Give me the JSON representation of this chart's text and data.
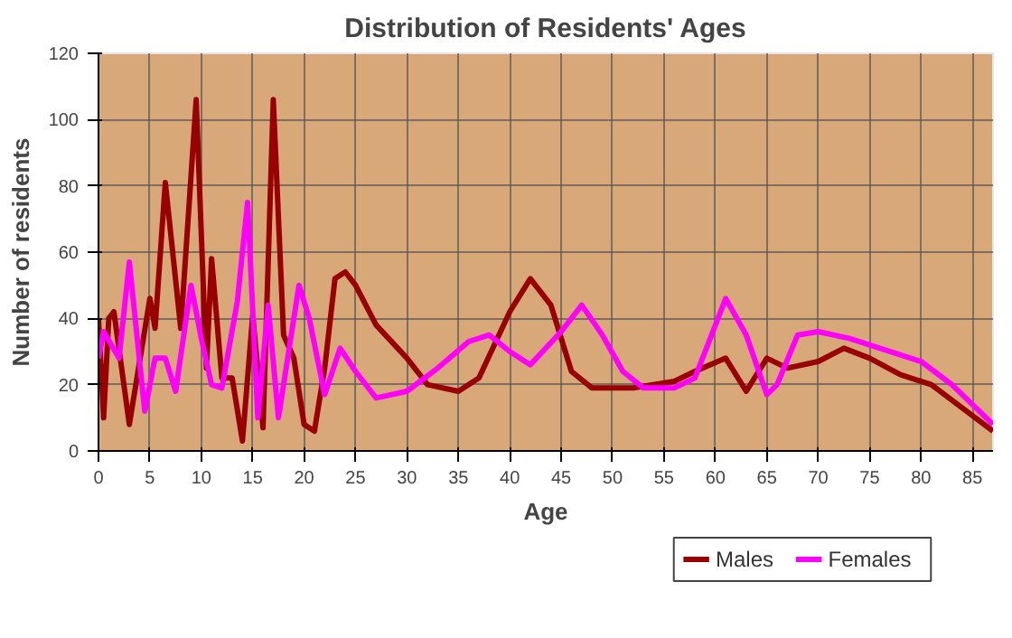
{
  "chart_data": {
    "type": "line",
    "title": "Distribution of Residents' Ages",
    "xlabel": "Age",
    "ylabel": "Number of residents",
    "xlim": [
      0,
      87
    ],
    "xticks": [
      0,
      5,
      10,
      15,
      20,
      25,
      30,
      35,
      40,
      45,
      50,
      55,
      60,
      65,
      70,
      75,
      80,
      85
    ],
    "ylim": [
      0,
      120
    ],
    "yticks": [
      0,
      20,
      40,
      60,
      80,
      100,
      120
    ],
    "grid": true,
    "legend": "bottom right",
    "line_style": "solid",
    "series": [
      {
        "name": "Males",
        "color": "#990000",
        "x": [
          0,
          0.5,
          1,
          1.5,
          3,
          5,
          5.5,
          6.5,
          8,
          9.5,
          10.5,
          11,
          12,
          13,
          14,
          15,
          16,
          17,
          18,
          19,
          20,
          21,
          22,
          23,
          24,
          25,
          27,
          30,
          32,
          35,
          37,
          40,
          42,
          44,
          46,
          48,
          52,
          56,
          58,
          61,
          63,
          65,
          67,
          70,
          72.5,
          75,
          78,
          81,
          84,
          87
        ],
        "values": [
          40,
          10,
          40,
          42,
          8,
          46,
          37,
          81,
          37,
          106,
          25,
          58,
          22,
          22,
          3,
          41,
          7,
          106,
          35,
          28,
          8,
          6,
          25,
          52,
          54,
          50,
          38,
          28,
          20,
          18,
          22,
          42,
          52,
          44,
          24,
          19,
          19,
          21,
          24,
          28,
          18,
          28,
          25,
          27,
          31,
          28,
          23,
          20,
          13,
          6
        ]
      },
      {
        "name": "Females",
        "color": "#ff00ff",
        "x": [
          0,
          0.5,
          2,
          3,
          4.5,
          5.5,
          6.5,
          7.5,
          9,
          10,
          11,
          12,
          13.5,
          14.5,
          15.5,
          16.5,
          17.5,
          19.5,
          20.5,
          22,
          23.5,
          25,
          27,
          30,
          33,
          36,
          38,
          40,
          42,
          45,
          47,
          49,
          51,
          53,
          56,
          58,
          61,
          63,
          65,
          66,
          68,
          70,
          73,
          76,
          80,
          83,
          87
        ],
        "values": [
          28,
          36,
          28,
          57,
          12,
          28,
          28,
          18,
          50,
          34,
          20,
          19,
          45,
          75,
          10,
          44,
          10,
          50,
          40,
          17,
          31,
          24,
          16,
          18,
          25,
          33,
          35,
          30,
          26,
          36,
          44,
          35,
          24,
          19,
          19,
          22,
          46,
          35,
          17,
          20,
          35,
          36,
          34,
          31,
          27,
          20,
          8
        ]
      }
    ]
  }
}
